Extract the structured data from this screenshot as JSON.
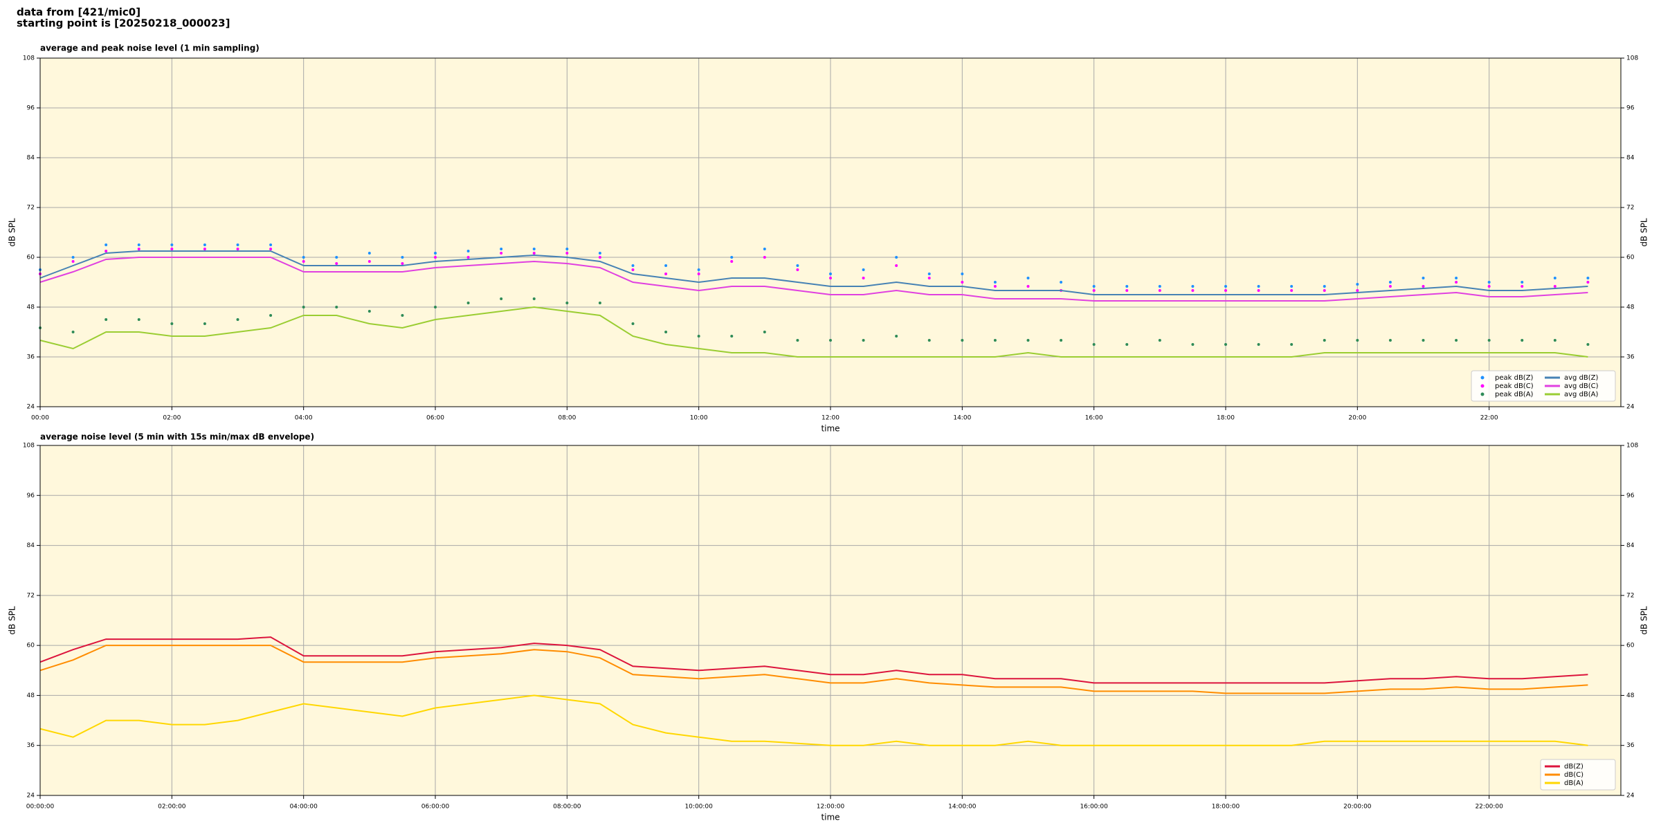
{
  "header": {
    "source": "data from [421/mic0]",
    "start": "starting point is [20250218_000023]"
  },
  "chart_data": [
    {
      "type": "line",
      "title": "average and peak noise level (1 min sampling)",
      "xlabel": "time",
      "ylabel": "dB SPL",
      "x": [
        0,
        0.5,
        1,
        1.5,
        2,
        2.5,
        3,
        3.5,
        4,
        4.5,
        5,
        5.5,
        6,
        6.5,
        7,
        7.5,
        8,
        8.5,
        9,
        9.5,
        10,
        10.5,
        11,
        11.5,
        12,
        12.5,
        13,
        13.5,
        14,
        14.5,
        15,
        15.5,
        16,
        16.5,
        17,
        17.5,
        18,
        18.5,
        19,
        19.5,
        20,
        20.5,
        21,
        21.5,
        22,
        22.5,
        23,
        23.5
      ],
      "xlim": [
        0,
        24
      ],
      "xticks": [
        {
          "value": 0,
          "label": "00:00"
        },
        {
          "value": 2,
          "label": "02:00"
        },
        {
          "value": 4,
          "label": "04:00"
        },
        {
          "value": 6,
          "label": "06:00"
        },
        {
          "value": 8,
          "label": "08:00"
        },
        {
          "value": 10,
          "label": "10:00"
        },
        {
          "value": 12,
          "label": "12:00"
        },
        {
          "value": 14,
          "label": "14:00"
        },
        {
          "value": 16,
          "label": "16:00"
        },
        {
          "value": 18,
          "label": "18:00"
        },
        {
          "value": 20,
          "label": "20:00"
        },
        {
          "value": 22,
          "label": "22:00"
        }
      ],
      "ylim": [
        24,
        108
      ],
      "yticks": [
        24,
        36,
        48,
        60,
        72,
        84,
        96,
        108
      ],
      "grid": true,
      "legend": "lower right",
      "series": [
        {
          "name": "peak dB(Z)",
          "type": "scatter",
          "color": "#1e90ff",
          "values": [
            57,
            60,
            63,
            63,
            63,
            63,
            63,
            63,
            60,
            60,
            61,
            60,
            61,
            61.5,
            62,
            62,
            62,
            61,
            58,
            58,
            57,
            60,
            62,
            58,
            56,
            57,
            60,
            56,
            56,
            54,
            55,
            54,
            53,
            53,
            53,
            53,
            53,
            53,
            53,
            53,
            53.5,
            54,
            55,
            55,
            54,
            54,
            55,
            55
          ]
        },
        {
          "name": "peak dB(C)",
          "type": "scatter",
          "color": "#ff00ff",
          "values": [
            56,
            59,
            61.5,
            62,
            62,
            62,
            62,
            62,
            59,
            58.5,
            59,
            58.5,
            60,
            60,
            61,
            61,
            61,
            60,
            57,
            56,
            56,
            59,
            60,
            57,
            55,
            55,
            58,
            55,
            54,
            53,
            53,
            52,
            52,
            52,
            52,
            52,
            52,
            52,
            52,
            52,
            52,
            53,
            53,
            54,
            53,
            53,
            53,
            54
          ]
        },
        {
          "name": "peak dB(A)",
          "type": "scatter",
          "color": "#2e8b57",
          "values": [
            43,
            42,
            45,
            45,
            44,
            44,
            45,
            46,
            48,
            48,
            47,
            46,
            48,
            49,
            50,
            50,
            49,
            49,
            44,
            42,
            41,
            41,
            42,
            40,
            40,
            40,
            41,
            40,
            40,
            40,
            40,
            40,
            39,
            39,
            40,
            39,
            39,
            39,
            39,
            40,
            40,
            40,
            40,
            40,
            40,
            40,
            40,
            39
          ]
        },
        {
          "name": "avg dB(Z)",
          "type": "line",
          "color": "#4682b4",
          "values": [
            55,
            58,
            61,
            61.5,
            61.5,
            61.5,
            61.5,
            61.5,
            58,
            58,
            58,
            58,
            59,
            59.5,
            60,
            60.5,
            60,
            59,
            56,
            55,
            54,
            55,
            55,
            54,
            53,
            53,
            54,
            53,
            53,
            52,
            52,
            52,
            51,
            51,
            51,
            51,
            51,
            51,
            51,
            51,
            51.5,
            52,
            52.5,
            53,
            52,
            52,
            52.5,
            53
          ]
        },
        {
          "name": "avg dB(C)",
          "type": "line",
          "color": "#e040e0",
          "values": [
            54,
            56.5,
            59.5,
            60,
            60,
            60,
            60,
            60,
            56.5,
            56.5,
            56.5,
            56.5,
            57.5,
            58,
            58.5,
            59,
            58.5,
            57.5,
            54,
            53,
            52,
            53,
            53,
            52,
            51,
            51,
            52,
            51,
            51,
            50,
            50,
            50,
            49.5,
            49.5,
            49.5,
            49.5,
            49.5,
            49.5,
            49.5,
            49.5,
            50,
            50.5,
            51,
            51.5,
            50.5,
            50.5,
            51,
            51.5
          ]
        },
        {
          "name": "avg dB(A)",
          "type": "line",
          "color": "#9acd32",
          "values": [
            40,
            38,
            42,
            42,
            41,
            41,
            42,
            43,
            46,
            46,
            44,
            43,
            45,
            46,
            47,
            48,
            47,
            46,
            41,
            39,
            38,
            37,
            37,
            36,
            36,
            36,
            36,
            36,
            36,
            36,
            37,
            36,
            36,
            36,
            36,
            36,
            36,
            36,
            36,
            37,
            37,
            37,
            37,
            37,
            37,
            37,
            37,
            36
          ]
        }
      ]
    },
    {
      "type": "line",
      "title": "average noise level (5 min with 15s min/max dB envelope)",
      "xlabel": "time",
      "ylabel": "dB SPL",
      "x": [
        0,
        0.5,
        1,
        1.5,
        2,
        2.5,
        3,
        3.5,
        4,
        4.5,
        5,
        5.5,
        6,
        6.5,
        7,
        7.5,
        8,
        8.5,
        9,
        9.5,
        10,
        10.5,
        11,
        11.5,
        12,
        12.5,
        13,
        13.5,
        14,
        14.5,
        15,
        15.5,
        16,
        16.5,
        17,
        17.5,
        18,
        18.5,
        19,
        19.5,
        20,
        20.5,
        21,
        21.5,
        22,
        22.5,
        23,
        23.5
      ],
      "xlim": [
        0,
        24
      ],
      "xticks": [
        {
          "value": 0,
          "label": "00:00:00"
        },
        {
          "value": 2,
          "label": "02:00:00"
        },
        {
          "value": 4,
          "label": "04:00:00"
        },
        {
          "value": 6,
          "label": "06:00:00"
        },
        {
          "value": 8,
          "label": "08:00:00"
        },
        {
          "value": 10,
          "label": "10:00:00"
        },
        {
          "value": 12,
          "label": "12:00:00"
        },
        {
          "value": 14,
          "label": "14:00:00"
        },
        {
          "value": 16,
          "label": "16:00:00"
        },
        {
          "value": 18,
          "label": "18:00:00"
        },
        {
          "value": 20,
          "label": "20:00:00"
        },
        {
          "value": 22,
          "label": "22:00:00"
        }
      ],
      "ylim": [
        24,
        108
      ],
      "yticks": [
        24,
        36,
        48,
        60,
        72,
        84,
        96,
        108
      ],
      "grid": true,
      "legend": "lower right",
      "series": [
        {
          "name": "dB(Z)",
          "type": "line",
          "color": "#dc143c",
          "values": [
            56,
            59,
            61.5,
            61.5,
            61.5,
            61.5,
            61.5,
            62,
            57.5,
            57.5,
            57.5,
            57.5,
            58.5,
            59,
            59.5,
            60.5,
            60,
            59,
            55,
            54.5,
            54,
            54.5,
            55,
            54,
            53,
            53,
            54,
            53,
            53,
            52,
            52,
            52,
            51,
            51,
            51,
            51,
            51,
            51,
            51,
            51,
            51.5,
            52,
            52,
            52.5,
            52,
            52,
            52.5,
            53
          ]
        },
        {
          "name": "dB(C)",
          "type": "line",
          "color": "#ff8c00",
          "values": [
            54,
            56.5,
            60,
            60,
            60,
            60,
            60,
            60,
            56,
            56,
            56,
            56,
            57,
            57.5,
            58,
            59,
            58.5,
            57,
            53,
            52.5,
            52,
            52.5,
            53,
            52,
            51,
            51,
            52,
            51,
            50.5,
            50,
            50,
            50,
            49,
            49,
            49,
            49,
            48.5,
            48.5,
            48.5,
            48.5,
            49,
            49.5,
            49.5,
            50,
            49.5,
            49.5,
            50,
            50.5
          ]
        },
        {
          "name": "dB(A)",
          "type": "line",
          "color": "#ffd700",
          "values": [
            40,
            38,
            42,
            42,
            41,
            41,
            42,
            44,
            46,
            45,
            44,
            43,
            45,
            46,
            47,
            48,
            47,
            46,
            41,
            39,
            38,
            37,
            37,
            36.5,
            36,
            36,
            37,
            36,
            36,
            36,
            37,
            36,
            36,
            36,
            36,
            36,
            36,
            36,
            36,
            37,
            37,
            37,
            37,
            37,
            37,
            37,
            37,
            36
          ]
        }
      ]
    }
  ]
}
